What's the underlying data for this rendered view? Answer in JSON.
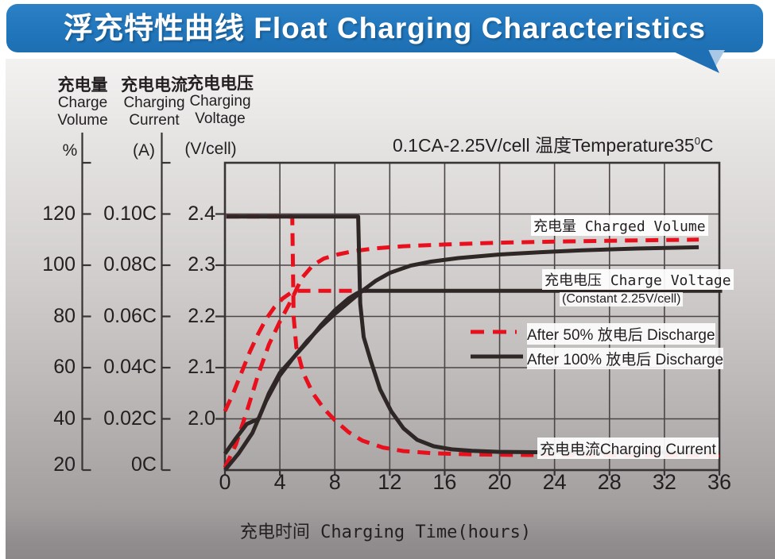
{
  "banner": {
    "title": "浮充特性曲线 Float Charging Characteristics",
    "bg_color": "#2176bc",
    "tail_colors": {
      "dark": "#1e6fb3",
      "light": "#a9c8e5"
    }
  },
  "axis_headers": {
    "volume": {
      "zh": "充电量",
      "en1": "Charge",
      "en2": "Volume",
      "unit": "%"
    },
    "current": {
      "zh": "充电电流",
      "en1": "Charging",
      "en2": "Current",
      "unit": "(A)"
    },
    "voltage": {
      "zh": "充电电压",
      "en1": "Charging",
      "en2": "Voltage",
      "unit": "(V/cell)"
    }
  },
  "condition": {
    "part1": "0.1CA-2.25V/cell",
    "part2": "  温度Temperature35",
    "sup": "0",
    "part3": "C"
  },
  "annotations": {
    "charged_volume": "充电量 Charged Volume",
    "charge_voltage": "充电电压 Charge Voltage",
    "constant_note": "(Constant 2.25V/cell)",
    "charging_current": "充电电流Charging Current"
  },
  "chart_data": {
    "type": "line",
    "title": "浮充特性曲线 Float Charging Characteristics",
    "condition": "0.1CA-2.25V/cell 温度Temperature35°C",
    "grid": true,
    "x_axis": {
      "label": "充电时间 Charging Time(hours)",
      "range": [
        0,
        36
      ],
      "ticks": [
        0,
        4,
        8,
        12,
        16,
        20,
        24,
        28,
        32,
        36
      ]
    },
    "y_axes": {
      "percent": {
        "name": "充电量 Charge Volume (%)",
        "tick_labels": [
          "120",
          "100",
          "80",
          "60",
          "40",
          "20"
        ],
        "top_value": 120,
        "bottom_value": 20
      },
      "current": {
        "name": "充电电流 Charging Current (A)",
        "tick_labels": [
          "0.10C",
          "0.08C",
          "0.06C",
          "0.04C",
          "0.02C",
          "0C"
        ],
        "top_value": 0.1,
        "bottom_value": 0
      },
      "voltage": {
        "name": "充电电压 Charging Voltage (V/cell)",
        "tick_labels": [
          "2.4",
          "2.3",
          "2.2",
          "2.1",
          "2.0"
        ],
        "top_value": 2.4,
        "bottom_value": 1.9
      }
    },
    "legend": [
      {
        "label": "After 50% 放电后 Discharge",
        "style": "dashed",
        "color": "#e8101c"
      },
      {
        "label": "After 100% 放电后 Discharge",
        "style": "solid",
        "color": "#2e2726"
      }
    ],
    "series": [
      {
        "id": "charged-volume-50",
        "name": "Charged Volume after 50% discharge",
        "axis": "percent",
        "color": "#e8101c",
        "dash": true,
        "points": [
          [
            0,
            21
          ],
          [
            0.8,
            30
          ],
          [
            1.6,
            43
          ],
          [
            2.4,
            57
          ],
          [
            3.2,
            69
          ],
          [
            4,
            78
          ],
          [
            4.8,
            86
          ],
          [
            5.6,
            95
          ],
          [
            6.4,
            100
          ],
          [
            7.2,
            102.6
          ],
          [
            8.2,
            104.2
          ],
          [
            9.5,
            105.6
          ],
          [
            11,
            106.6
          ],
          [
            13,
            107.4
          ],
          [
            16,
            108.1
          ],
          [
            20,
            108.8
          ],
          [
            25,
            109.3
          ],
          [
            30,
            109.7
          ],
          [
            34.5,
            110
          ]
        ]
      },
      {
        "id": "charge-voltage-50",
        "name": "Charge Voltage after 50% discharge",
        "axis": "voltage",
        "color": "#e8101c",
        "dash": true,
        "points": [
          [
            0,
            2.015
          ],
          [
            0.6,
            2.05
          ],
          [
            1.2,
            2.09
          ],
          [
            1.8,
            2.13
          ],
          [
            2.4,
            2.165
          ],
          [
            3,
            2.195
          ],
          [
            3.6,
            2.218
          ],
          [
            4.2,
            2.235
          ],
          [
            4.8,
            2.246
          ],
          [
            5.3,
            2.25
          ],
          [
            10.3,
            2.25
          ]
        ]
      },
      {
        "id": "charging-current-50",
        "name": "Charging Current after 50% discharge",
        "axis": "current",
        "color": "#e8101c",
        "dash": true,
        "points": [
          [
            0.1,
            0.099
          ],
          [
            4.9,
            0.099
          ],
          [
            5.0,
            0.06
          ],
          [
            5.2,
            0.048
          ],
          [
            5.7,
            0.038
          ],
          [
            6.4,
            0.03
          ],
          [
            7.2,
            0.024
          ],
          [
            8,
            0.0195
          ],
          [
            9,
            0.0148
          ],
          [
            10,
            0.0115
          ],
          [
            11.5,
            0.0088
          ],
          [
            13,
            0.0074
          ],
          [
            15,
            0.0066
          ],
          [
            18,
            0.0061
          ],
          [
            22,
            0.0059
          ],
          [
            28,
            0.0058
          ],
          [
            36,
            0.0056
          ]
        ]
      },
      {
        "id": "charged-volume-100",
        "name": "Charged Volume after 100% discharge",
        "axis": "percent",
        "color": "#2e2726",
        "dash": false,
        "points": [
          [
            0,
            20
          ],
          [
            1,
            26.5
          ],
          [
            2,
            34.5
          ],
          [
            3,
            47
          ],
          [
            4,
            57
          ],
          [
            5,
            64
          ],
          [
            6,
            70.5
          ],
          [
            7,
            76
          ],
          [
            8,
            81
          ],
          [
            9,
            85.5
          ],
          [
            10,
            90
          ],
          [
            11,
            94
          ],
          [
            12,
            97
          ],
          [
            13.5,
            99.8
          ],
          [
            15,
            101.4
          ],
          [
            17,
            102.8
          ],
          [
            20,
            104.2
          ],
          [
            23,
            105.1
          ],
          [
            26,
            105.8
          ],
          [
            30,
            106.5
          ],
          [
            34.5,
            107
          ]
        ]
      },
      {
        "id": "charge-voltage-100",
        "name": "Charge Voltage after 100% discharge",
        "axis": "voltage",
        "color": "#2e2726",
        "dash": false,
        "points": [
          [
            0,
            1.932
          ],
          [
            0.8,
            1.962
          ],
          [
            1.6,
            1.99
          ],
          [
            2.45,
            2.0
          ],
          [
            3.2,
            2.05
          ],
          [
            4,
            2.09
          ],
          [
            5,
            2.12
          ],
          [
            6,
            2.15
          ],
          [
            7,
            2.183
          ],
          [
            8,
            2.212
          ],
          [
            9,
            2.235
          ],
          [
            9.6,
            2.245
          ],
          [
            10,
            2.25
          ],
          [
            36.2,
            2.25
          ]
        ]
      },
      {
        "id": "charging-current-100",
        "name": "Charging Current after 100% discharge",
        "axis": "current",
        "color": "#2e2726",
        "dash": false,
        "points": [
          [
            0.1,
            0.099
          ],
          [
            9.7,
            0.099
          ],
          [
            9.85,
            0.065
          ],
          [
            10.1,
            0.052
          ],
          [
            10.6,
            0.043
          ],
          [
            11.3,
            0.0315
          ],
          [
            12.1,
            0.023
          ],
          [
            13,
            0.0163
          ],
          [
            14,
            0.0118
          ],
          [
            15.2,
            0.0093
          ],
          [
            16.5,
            0.0081
          ],
          [
            18,
            0.0075
          ],
          [
            20,
            0.0071
          ],
          [
            24,
            0.0069
          ],
          [
            30,
            0.0069
          ],
          [
            36,
            0.0068
          ]
        ]
      }
    ]
  },
  "colors": {
    "grid": "#4b4546",
    "frame": "#383334",
    "text": "#231f20"
  }
}
